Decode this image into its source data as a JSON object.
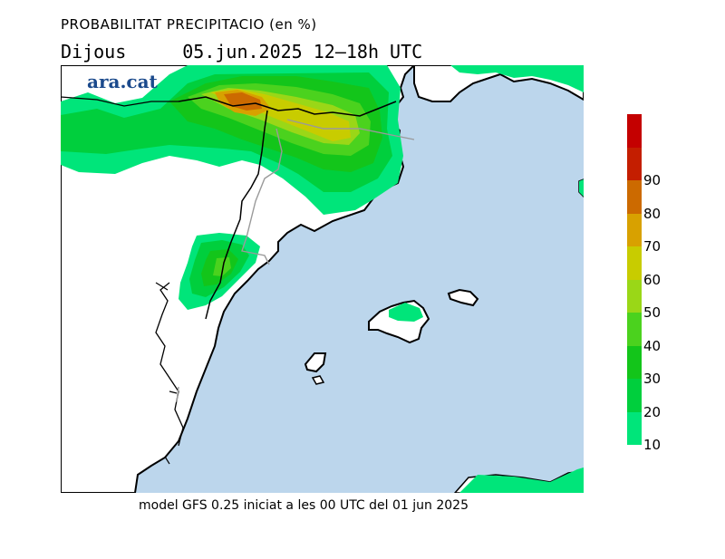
{
  "header": {
    "title": "PROBABILITAT PRECIPITACIO (en %)",
    "day": "Dijous",
    "date_range": "05.jun.2025 12–18h UTC"
  },
  "brand": {
    "logo_text": "ara.cat"
  },
  "footer": {
    "model_info": "model GFS 0.25 iniciat a les 00 UTC del 01 jun 2025"
  },
  "legend": {
    "bins": [
      {
        "label": "10",
        "color": "#00e57a"
      },
      {
        "label": "20",
        "color": "#00cf3d"
      },
      {
        "label": "30",
        "color": "#13c51a"
      },
      {
        "label": "40",
        "color": "#4bd21e"
      },
      {
        "label": "50",
        "color": "#9ad717"
      },
      {
        "label": "60",
        "color": "#c8cc00"
      },
      {
        "label": "70",
        "color": "#d8a100"
      },
      {
        "label": "80",
        "color": "#cc6a00"
      },
      {
        "label": "90",
        "color": "#c41e00"
      }
    ],
    "top_color": "#c40000"
  },
  "map": {
    "sea_color": "#bcd6ec",
    "land_color": "#ffffff",
    "border_color": "#000000",
    "admin_border_color": "#9a9a9a"
  }
}
